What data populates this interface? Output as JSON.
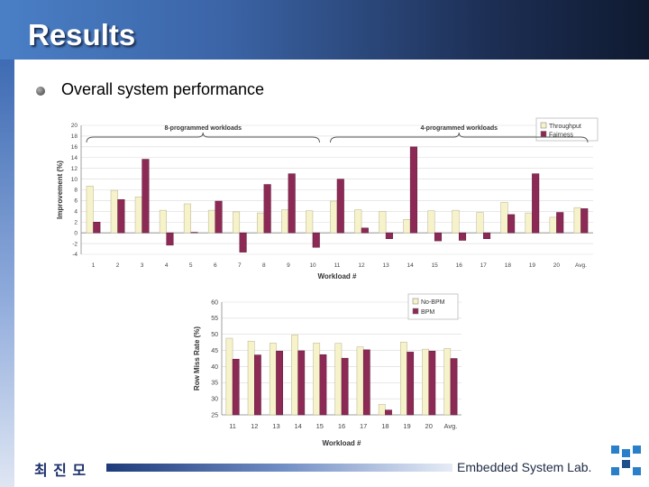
{
  "slide": {
    "title": "Results",
    "bullet": "Overall system performance",
    "author": "최 진 모",
    "lab": "Embedded System Lab."
  },
  "colors": {
    "throughput": "#f6f2c9",
    "fairness": "#8c2a55",
    "no_bpm": "#f6f2c9",
    "bpm": "#8c2a55"
  },
  "icons": {
    "bullet": "circle-bullet-icon",
    "logo": "lab-logo-icon"
  },
  "chart_data": [
    {
      "type": "bar",
      "title": "",
      "xlabel": "Workload #",
      "ylabel": "Improvement (%)",
      "ylim": [
        -4,
        20
      ],
      "yticks": [
        20,
        18,
        16,
        14,
        12,
        10,
        8,
        6,
        4,
        2,
        0,
        -2,
        -4
      ],
      "grid": true,
      "legend_position": "top-right",
      "categories": [
        "1",
        "2",
        "3",
        "4",
        "5",
        "6",
        "7",
        "8",
        "9",
        "10",
        "11",
        "12",
        "13",
        "14",
        "15",
        "16",
        "17",
        "18",
        "19",
        "20",
        "Avg."
      ],
      "series": [
        {
          "name": "Throughput",
          "values": [
            8.7,
            7.9,
            6.7,
            4.2,
            5.4,
            4.2,
            3.9,
            3.7,
            4.3,
            4.1,
            5.9,
            4.3,
            4.0,
            2.5,
            4.1,
            4.2,
            3.8,
            5.7,
            3.7,
            2.9,
            4.7
          ]
        },
        {
          "name": "Fairness",
          "values": [
            2.0,
            6.2,
            13.7,
            -2.3,
            0.1,
            5.9,
            -3.6,
            9.0,
            11.0,
            -2.7,
            10.0,
            0.9,
            -1.1,
            16.0,
            -1.5,
            -1.4,
            -1.1,
            3.4,
            11.0,
            3.8,
            4.5
          ]
        }
      ],
      "annotations": [
        {
          "text": "8-programmed workloads",
          "categories": [
            "1",
            "10"
          ]
        },
        {
          "text": "4-programmed workloads",
          "categories": [
            "11",
            "Avg."
          ]
        }
      ]
    },
    {
      "type": "bar",
      "title": "",
      "xlabel": "Workload #",
      "ylabel": "Row Miss Rate (%)",
      "ylim": [
        25,
        60
      ],
      "yticks": [
        60,
        55,
        50,
        45,
        40,
        35,
        30,
        25
      ],
      "grid": true,
      "legend_position": "top-right",
      "categories": [
        "11",
        "12",
        "13",
        "14",
        "15",
        "16",
        "17",
        "18",
        "19",
        "20",
        "Avg."
      ],
      "series": [
        {
          "name": "No-BPM",
          "values": [
            48.8,
            47.9,
            47.3,
            49.8,
            47.3,
            47.2,
            46.1,
            28.3,
            47.6,
            45.4,
            45.6
          ]
        },
        {
          "name": "BPM",
          "values": [
            42.3,
            43.6,
            44.8,
            44.9,
            43.7,
            42.6,
            45.2,
            26.5,
            44.5,
            44.8,
            42.5
          ]
        }
      ]
    }
  ]
}
